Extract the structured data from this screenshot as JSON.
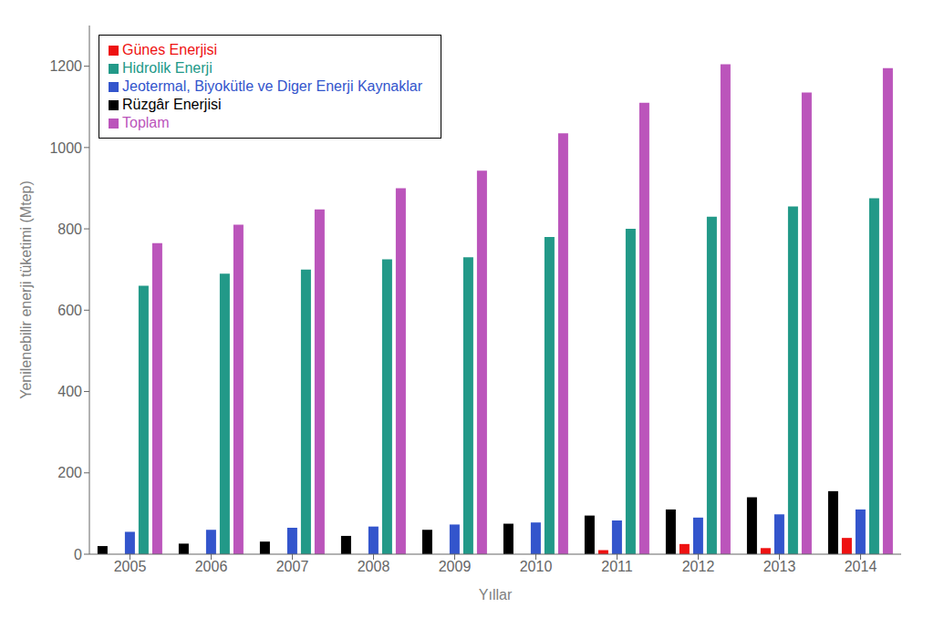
{
  "chart_data": {
    "type": "bar",
    "categories": [
      "2005",
      "2006",
      "2007",
      "2008",
      "2009",
      "2010",
      "2011",
      "2012",
      "2013",
      "2014"
    ],
    "series": [
      {
        "name": "Rüzgâr Enerjisi",
        "color": "#000000",
        "values": [
          20,
          26,
          31,
          45,
          60,
          75,
          95,
          110,
          140,
          155
        ]
      },
      {
        "name": "Günes Enerjisi",
        "color": "#ee1111",
        "values": [
          0,
          0,
          0,
          0,
          0,
          0,
          10,
          25,
          15,
          40
        ]
      },
      {
        "name": "Jeotermal, Biyokütle ve Diger Enerji Kaynaklar",
        "color": "#3355cc",
        "values": [
          55,
          60,
          65,
          68,
          73,
          78,
          83,
          90,
          98,
          110
        ]
      },
      {
        "name": "Hidrolik Enerji",
        "color": "#229988",
        "values": [
          660,
          690,
          700,
          725,
          730,
          780,
          800,
          830,
          855,
          875
        ]
      },
      {
        "name": "Toplam",
        "color": "#bb55bb",
        "values": [
          765,
          810,
          848,
          900,
          943,
          1035,
          1110,
          1205,
          1135,
          1195
        ]
      }
    ],
    "xlabel": "Yıllar",
    "ylabel": "Yenilenebilir enerji tüketimi (Mtep)",
    "ylim": [
      0,
      1300
    ],
    "yticks": [
      0,
      200,
      400,
      600,
      800,
      1000,
      1200
    ],
    "grid": false,
    "legend": "upper left"
  }
}
